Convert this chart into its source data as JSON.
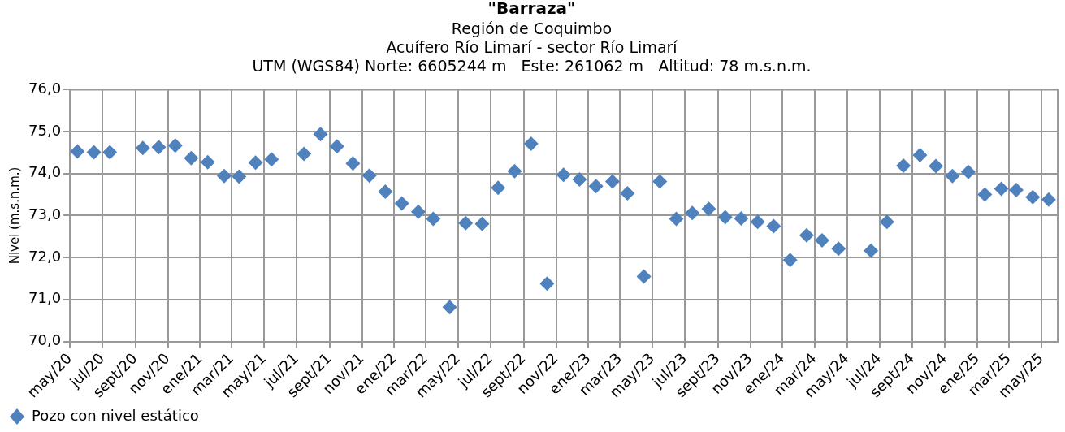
{
  "chart_data": {
    "type": "scatter",
    "title": "\"Barraza\"",
    "subtitle": "Región de Coquimbo\nAcuífero Río Limarí - sector Río Limarí\nUTM (WGS84) Norte: 6605244 m   Este: 261062 m   Altitud: 78 m.s.n.m.",
    "ylabel": "Nivel (m.s.n.m.)",
    "x": [
      "2020-05-15",
      "2020-06-15",
      "2020-07-15",
      "2020-09-15",
      "2020-10-15",
      "2020-11-15",
      "2020-12-15",
      "2021-01-15",
      "2021-02-15",
      "2021-03-15",
      "2021-04-15",
      "2021-05-15",
      "2021-07-15",
      "2021-08-15",
      "2021-09-15",
      "2021-10-15",
      "2021-11-15",
      "2021-12-15",
      "2022-01-15",
      "2022-02-15",
      "2022-03-15",
      "2022-04-15",
      "2022-05-15",
      "2022-06-15",
      "2022-07-15",
      "2022-08-15",
      "2022-09-15",
      "2022-10-15",
      "2022-11-15",
      "2022-12-15",
      "2023-01-15",
      "2023-02-15",
      "2023-03-15",
      "2023-04-15",
      "2023-05-15",
      "2023-06-15",
      "2023-07-15",
      "2023-08-15",
      "2023-09-15",
      "2023-10-15",
      "2023-11-15",
      "2023-12-15",
      "2024-01-15",
      "2024-02-15",
      "2024-03-15",
      "2024-04-15",
      "2024-06-15",
      "2024-07-15",
      "2024-08-15",
      "2024-09-15",
      "2024-10-15",
      "2024-11-15",
      "2024-12-15",
      "2025-01-15",
      "2025-02-15",
      "2025-03-15",
      "2025-04-15",
      "2025-05-15"
    ],
    "series": [
      {
        "name": "Pozo con nivel estático",
        "color": "#4f81bd",
        "values": [
          74.53,
          74.51,
          74.51,
          74.61,
          74.63,
          74.67,
          74.37,
          74.27,
          73.94,
          73.93,
          74.26,
          74.34,
          74.47,
          74.94,
          74.65,
          74.24,
          73.95,
          73.57,
          73.29,
          73.09,
          72.92,
          70.82,
          72.82,
          72.8,
          73.66,
          74.06,
          74.71,
          71.38,
          73.97,
          73.86,
          73.7,
          73.81,
          73.53,
          71.55,
          73.81,
          72.92,
          73.06,
          73.16,
          72.96,
          72.93,
          72.85,
          72.75,
          71.94,
          72.53,
          72.41,
          72.21,
          72.16,
          72.85,
          74.19,
          74.44,
          74.18,
          73.94,
          74.04,
          73.5,
          73.64,
          73.61,
          73.44,
          73.38
        ]
      }
    ],
    "marker": "diamond",
    "grid": true,
    "legend": "bottom",
    "xlim": [
      "2020-05",
      "2025-06"
    ],
    "xticks": [
      {
        "value": "2020-05",
        "label": "may/20"
      },
      {
        "value": "2020-07",
        "label": "jul/20"
      },
      {
        "value": "2020-09",
        "label": "sept/20"
      },
      {
        "value": "2020-11",
        "label": "nov/20"
      },
      {
        "value": "2021-01",
        "label": "ene/21"
      },
      {
        "value": "2021-03",
        "label": "mar/21"
      },
      {
        "value": "2021-05",
        "label": "may/21"
      },
      {
        "value": "2021-07",
        "label": "jul/21"
      },
      {
        "value": "2021-09",
        "label": "sept/21"
      },
      {
        "value": "2021-11",
        "label": "nov/21"
      },
      {
        "value": "2022-01",
        "label": "ene/22"
      },
      {
        "value": "2022-03",
        "label": "mar/22"
      },
      {
        "value": "2022-05",
        "label": "may/22"
      },
      {
        "value": "2022-07",
        "label": "jul/22"
      },
      {
        "value": "2022-09",
        "label": "sept/22"
      },
      {
        "value": "2022-11",
        "label": "nov/22"
      },
      {
        "value": "2023-01",
        "label": "ene/23"
      },
      {
        "value": "2023-03",
        "label": "mar/23"
      },
      {
        "value": "2023-05",
        "label": "may/23"
      },
      {
        "value": "2023-07",
        "label": "jul/23"
      },
      {
        "value": "2023-09",
        "label": "sept/23"
      },
      {
        "value": "2023-11",
        "label": "nov/23"
      },
      {
        "value": "2024-01",
        "label": "ene/24"
      },
      {
        "value": "2024-03",
        "label": "mar/24"
      },
      {
        "value": "2024-05",
        "label": "may/24"
      },
      {
        "value": "2024-07",
        "label": "jul/24"
      },
      {
        "value": "2024-09",
        "label": "sept/24"
      },
      {
        "value": "2024-11",
        "label": "nov/24"
      },
      {
        "value": "2025-01",
        "label": "ene/25"
      },
      {
        "value": "2025-03",
        "label": "mar/25"
      },
      {
        "value": "2025-05",
        "label": "may/25"
      }
    ],
    "ylim": [
      70,
      76
    ],
    "yticks": [
      {
        "value": 70,
        "label": "70,0"
      },
      {
        "value": 71,
        "label": "71,0"
      },
      {
        "value": 72,
        "label": "72,0"
      },
      {
        "value": 73,
        "label": "73,0"
      },
      {
        "value": 74,
        "label": "74,0"
      },
      {
        "value": 75,
        "label": "75,0"
      },
      {
        "value": 76,
        "label": "76,0"
      }
    ]
  }
}
